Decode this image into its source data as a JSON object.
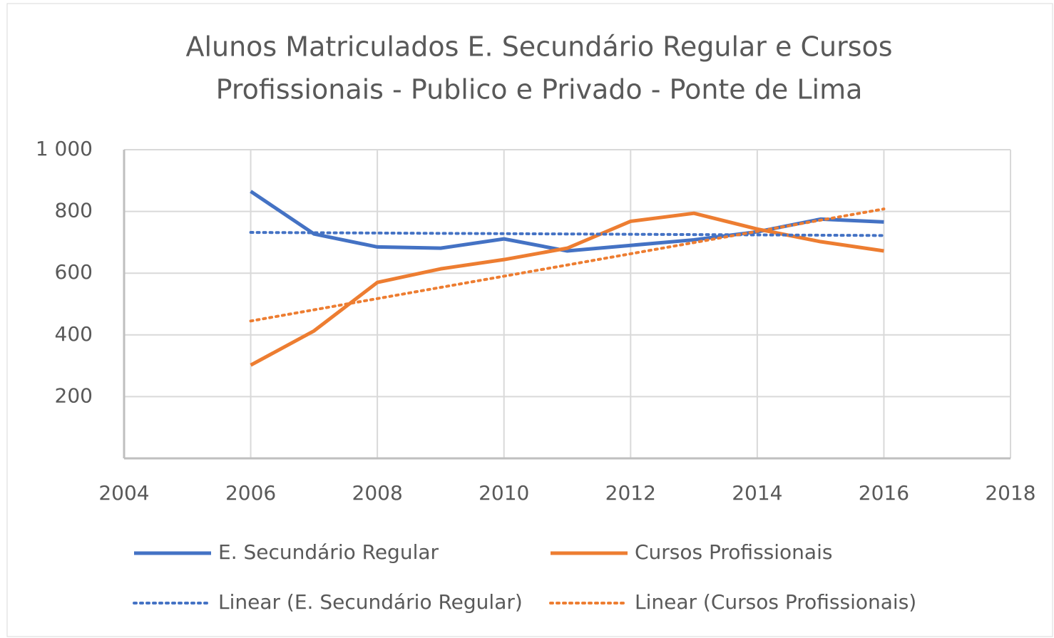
{
  "chart_data": {
    "type": "line",
    "title": [
      "Alunos Matriculados E. Secundário Regular e Cursos",
      "Profissionais - Publico e Privado - Ponte de Lima"
    ],
    "x": [
      2006,
      2007,
      2008,
      2009,
      2010,
      2011,
      2012,
      2013,
      2014,
      2015,
      2016
    ],
    "series": [
      {
        "name": "E. Secundário Regular",
        "color": "#4472c4",
        "values": [
          865,
          727,
          685,
          681,
          711,
          672,
          690,
          708,
          734,
          775,
          766
        ]
      },
      {
        "name": "Cursos Profissionais",
        "color": "#ed7d31",
        "values": [
          302,
          413,
          570,
          614,
          644,
          681,
          768,
          794,
          743,
          702,
          672
        ]
      },
      {
        "name": "Linear (E. Secundário Regular)",
        "color": "#4472c4",
        "dashed": true,
        "x": [
          2006,
          2016
        ],
        "values": [
          732,
          722
        ]
      },
      {
        "name": "Linear (Cursos Profissionais)",
        "color": "#ed7d31",
        "dashed": true,
        "x": [
          2006,
          2016
        ],
        "values": [
          445,
          808
        ]
      }
    ],
    "xlim": [
      2004,
      2018
    ],
    "xticks": [
      2004,
      2006,
      2008,
      2010,
      2012,
      2014,
      2016,
      2018
    ],
    "ylim": [
      0,
      1000
    ],
    "yticks": [
      200,
      400,
      600,
      800,
      {
        "value": 1000,
        "label": "1 000"
      }
    ],
    "grid": true,
    "legend": "bottom"
  }
}
